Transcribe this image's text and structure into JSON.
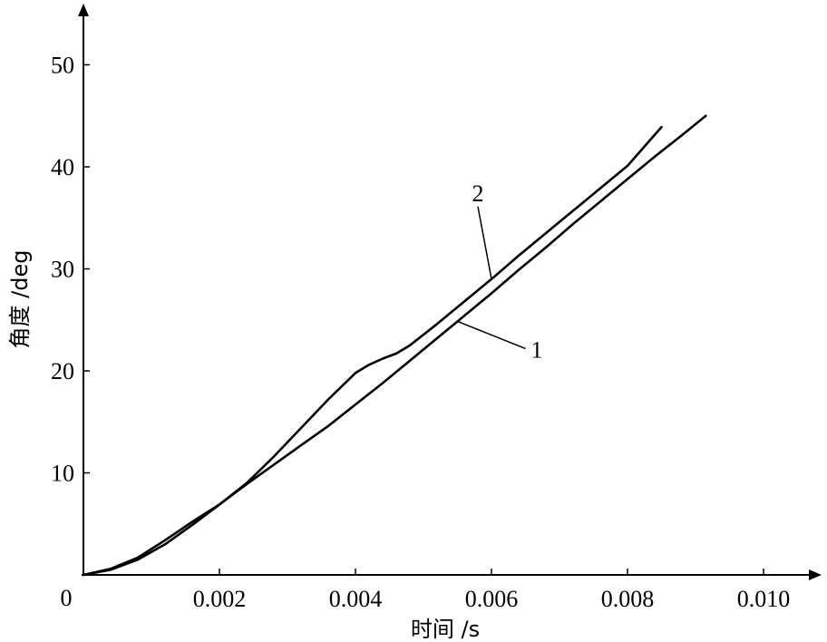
{
  "chart_data": {
    "type": "line",
    "xlabel": "时间 /s",
    "ylabel": "角度 /deg",
    "origin_label": "0",
    "xlim": [
      0,
      0.0106
    ],
    "ylim": [
      0,
      55
    ],
    "x_ticks": [
      {
        "value": 0.002,
        "label": "0.002"
      },
      {
        "value": 0.004,
        "label": "0.004"
      },
      {
        "value": 0.006,
        "label": "0.006"
      },
      {
        "value": 0.008,
        "label": "0.008"
      },
      {
        "value": 0.01,
        "label": "0.010"
      }
    ],
    "y_ticks": [
      {
        "value": 10,
        "label": "10"
      },
      {
        "value": 20,
        "label": "20"
      },
      {
        "value": 30,
        "label": "30"
      },
      {
        "value": 40,
        "label": "40"
      },
      {
        "value": 50,
        "label": "50"
      }
    ],
    "grid": false,
    "series": [
      {
        "name": "1",
        "x": [
          0,
          0.0004,
          0.0008,
          0.0012,
          0.0016,
          0.002,
          0.0024,
          0.0028,
          0.0032,
          0.0036,
          0.004,
          0.0044,
          0.0048,
          0.0052,
          0.0056,
          0.006,
          0.0064,
          0.0068,
          0.0072,
          0.0076,
          0.008,
          0.0084,
          0.0088,
          0.00915
        ],
        "y": [
          0,
          0.5,
          1.5,
          3.0,
          4.9,
          6.9,
          8.9,
          10.8,
          12.7,
          14.6,
          16.7,
          18.8,
          21.0,
          23.2,
          25.4,
          27.6,
          29.9,
          32.1,
          34.4,
          36.6,
          38.8,
          41.0,
          43.1,
          45.0
        ]
      },
      {
        "name": "2",
        "x": [
          0,
          0.0004,
          0.0008,
          0.0012,
          0.0016,
          0.002,
          0.0024,
          0.0028,
          0.0032,
          0.0036,
          0.004,
          0.0042,
          0.0044,
          0.0046,
          0.0048,
          0.0052,
          0.0056,
          0.006,
          0.0064,
          0.0068,
          0.0072,
          0.0076,
          0.008,
          0.0085
        ],
        "y": [
          0,
          0.6,
          1.7,
          3.4,
          5.2,
          6.9,
          9.0,
          11.6,
          14.4,
          17.2,
          19.8,
          20.6,
          21.2,
          21.7,
          22.5,
          24.6,
          26.8,
          29.0,
          31.3,
          33.5,
          35.7,
          37.9,
          40.1,
          43.9
        ]
      }
    ],
    "annotations": [
      {
        "text": "1",
        "series": "1",
        "at_x": 0.0055
      },
      {
        "text": "2",
        "series": "2",
        "at_x": 0.006
      }
    ]
  }
}
